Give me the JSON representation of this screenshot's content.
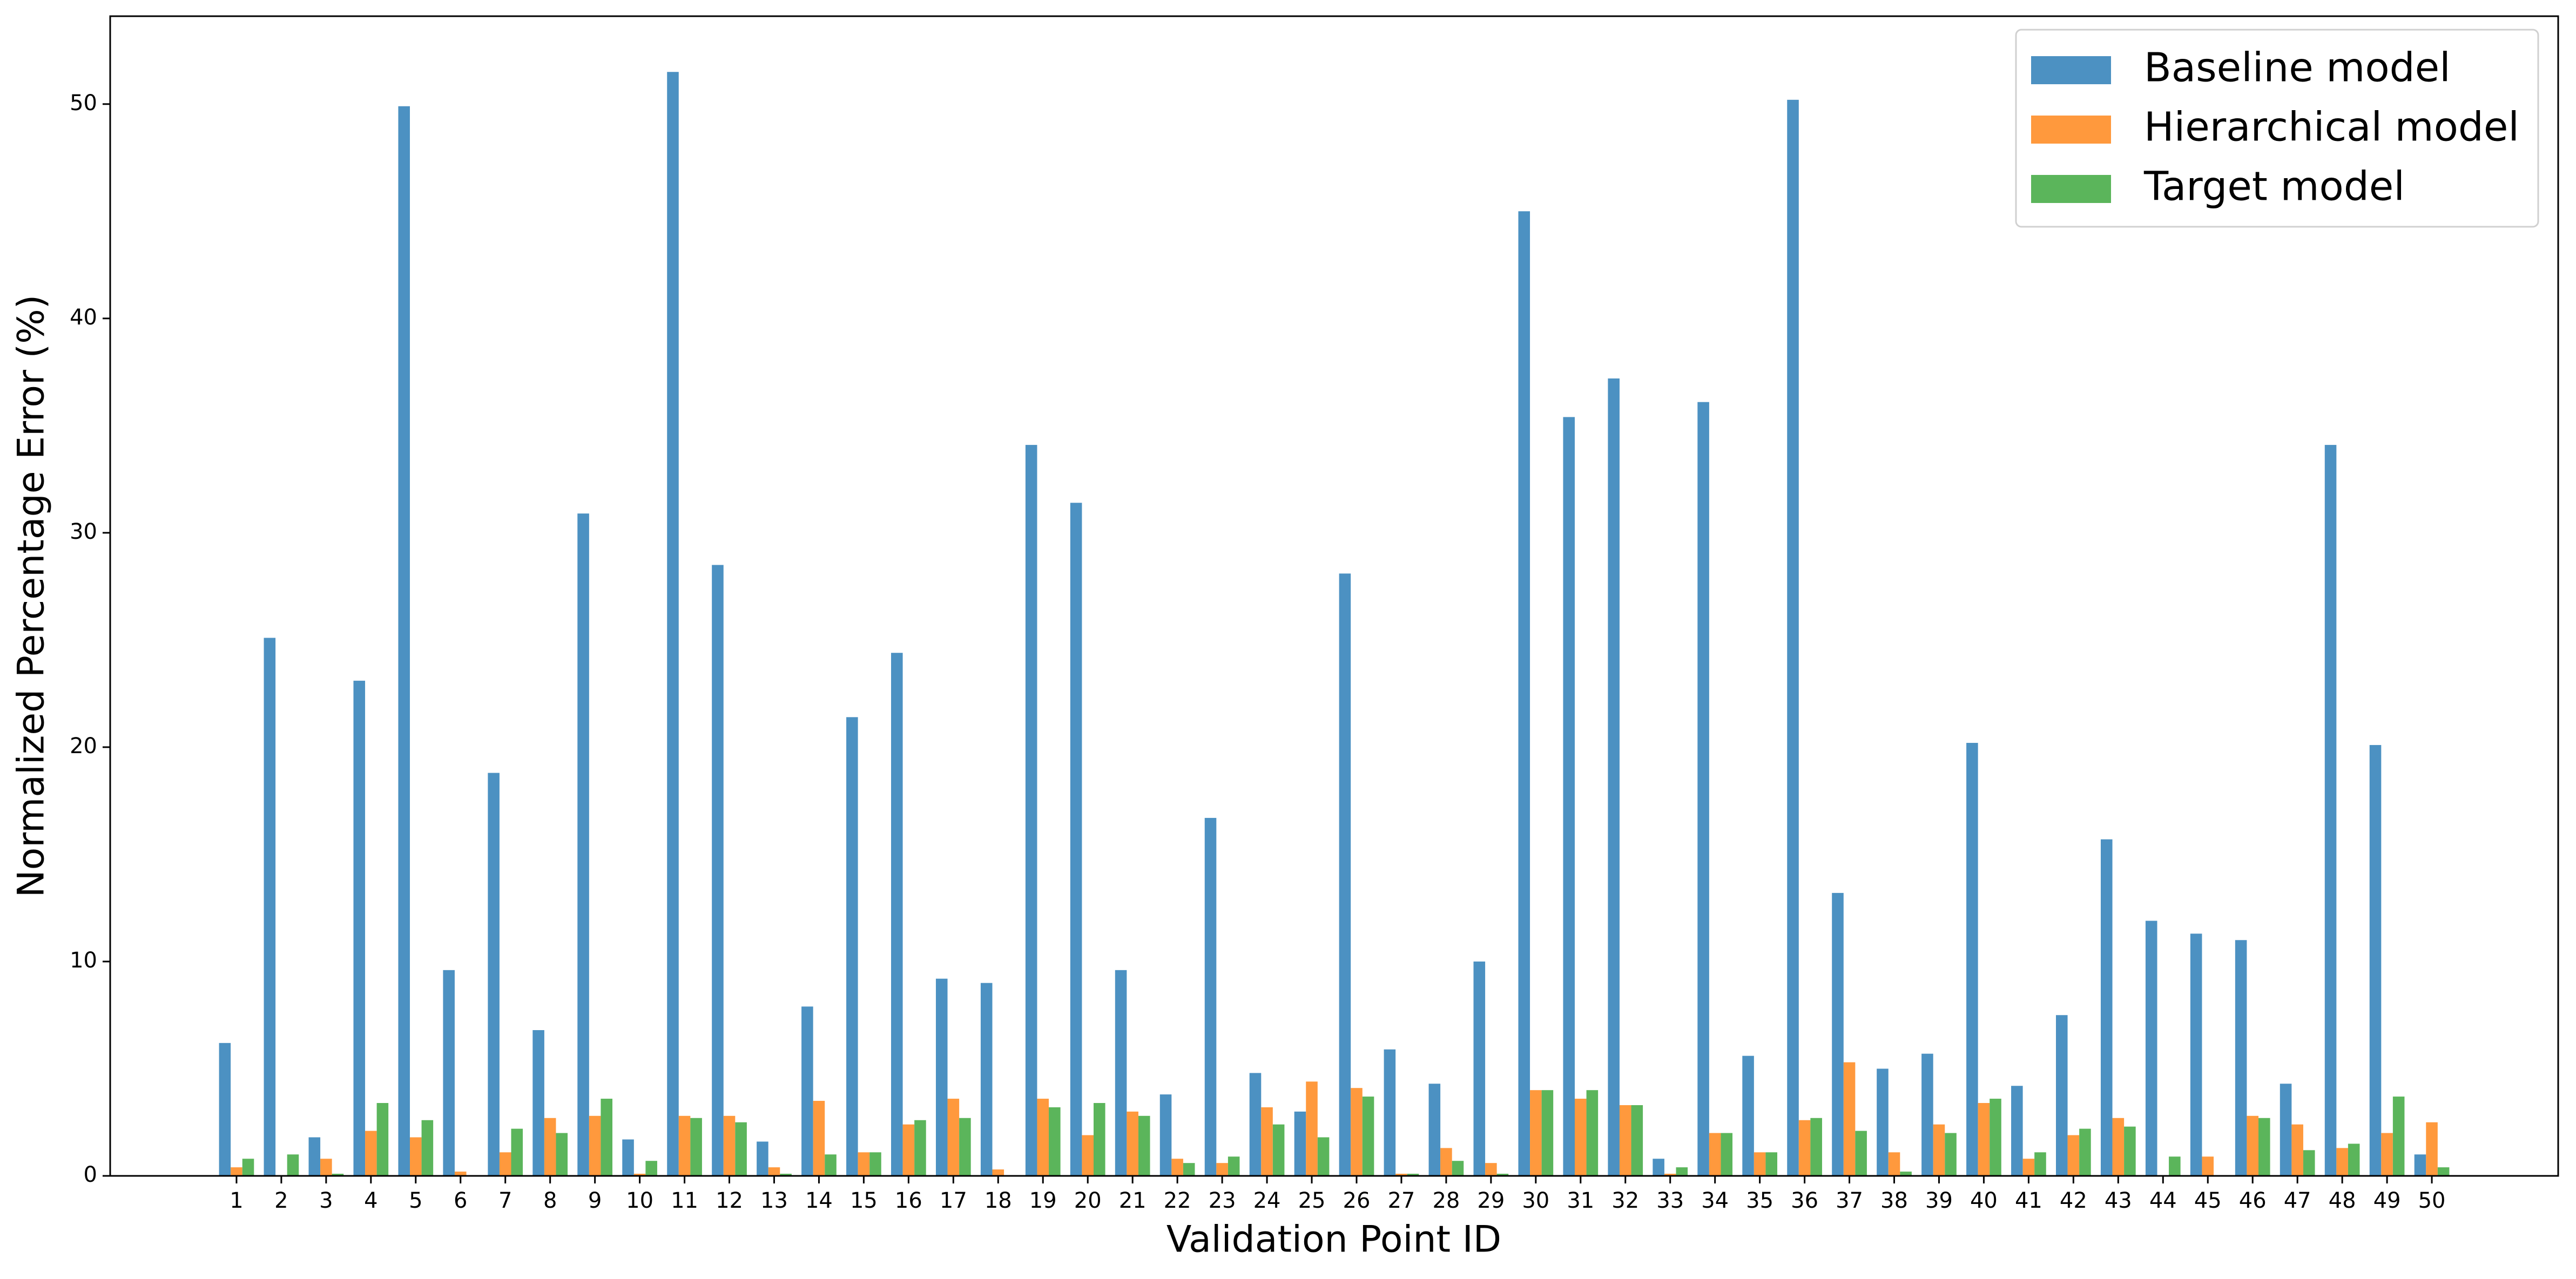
{
  "chart_data": {
    "type": "bar",
    "x_label": "Validation Point ID",
    "y_label": "Normalized Percentage Error (%)",
    "categories": [
      "1",
      "2",
      "3",
      "4",
      "5",
      "6",
      "7",
      "8",
      "9",
      "10",
      "11",
      "12",
      "13",
      "14",
      "15",
      "16",
      "17",
      "18",
      "19",
      "20",
      "21",
      "22",
      "23",
      "24",
      "25",
      "26",
      "27",
      "28",
      "29",
      "30",
      "31",
      "32",
      "33",
      "34",
      "35",
      "36",
      "37",
      "38",
      "39",
      "40",
      "41",
      "42",
      "43",
      "44",
      "45",
      "46",
      "47",
      "48",
      "49",
      "50"
    ],
    "series": [
      {
        "name": "Baseline model",
        "color": "#4c91c2",
        "values": [
          6.2,
          25.1,
          1.8,
          23.1,
          49.9,
          9.6,
          18.8,
          6.8,
          30.9,
          1.7,
          51.5,
          28.5,
          1.6,
          7.9,
          21.4,
          24.4,
          9.2,
          9.0,
          34.1,
          31.4,
          9.6,
          3.8,
          16.7,
          4.8,
          3.0,
          28.1,
          5.9,
          4.3,
          10.0,
          45.0,
          35.4,
          37.2,
          0.8,
          36.1,
          5.6,
          50.2,
          13.2,
          5.0,
          5.7,
          20.2,
          4.2,
          7.5,
          15.7,
          11.9,
          11.3,
          11.0,
          4.3,
          34.1,
          20.1,
          1.0
        ]
      },
      {
        "name": "Hierarchical model",
        "color": "#ff993d",
        "values": [
          0.4,
          0,
          0.8,
          2.1,
          1.8,
          0.2,
          1.1,
          2.7,
          2.8,
          0.1,
          2.8,
          2.8,
          0.4,
          3.5,
          1.1,
          2.4,
          3.6,
          0.3,
          3.6,
          1.9,
          3.0,
          0.8,
          0.6,
          3.2,
          4.4,
          4.1,
          0.1,
          1.3,
          0.6,
          4.0,
          3.6,
          3.3,
          0.1,
          2.0,
          1.1,
          2.6,
          5.3,
          1.1,
          2.4,
          3.4,
          0.8,
          1.9,
          2.7,
          0,
          0.9,
          2.8,
          2.4,
          1.3,
          2.0,
          2.5
        ]
      },
      {
        "name": "Target model",
        "color": "#5bb55b",
        "values": [
          0.8,
          1.0,
          0.1,
          3.4,
          2.6,
          0,
          2.2,
          2.0,
          3.6,
          0.7,
          2.7,
          2.5,
          0.1,
          1.0,
          1.1,
          2.6,
          2.7,
          0,
          3.2,
          3.4,
          2.8,
          0.6,
          0.9,
          2.4,
          1.8,
          3.7,
          0.1,
          0.7,
          0.1,
          4.0,
          4.0,
          3.3,
          0.4,
          2.0,
          1.1,
          2.7,
          2.1,
          0.2,
          2.0,
          3.6,
          1.1,
          2.2,
          2.3,
          0.9,
          0,
          2.7,
          1.2,
          1.5,
          3.7,
          0.4
        ]
      }
    ],
    "ylim": [
      0,
      54.1
    ],
    "yticks": [
      0,
      10,
      20,
      30,
      40,
      50
    ],
    "legend": "upper right"
  }
}
